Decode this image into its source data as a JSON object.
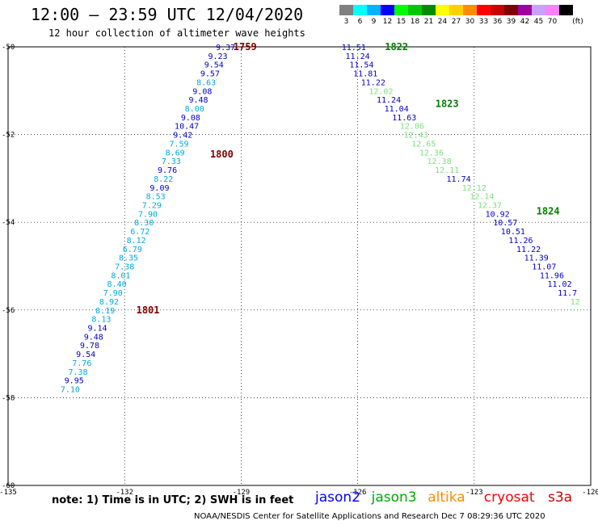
{
  "header": {
    "title": "12:00 – 23:59 UTC 12/04/2020",
    "subtitle": "12 hour collection of altimeter wave heights"
  },
  "colorbar": {
    "unit": "(ft)",
    "steps": [
      {
        "label": "3",
        "color": "#808080"
      },
      {
        "label": "6",
        "color": "#00ffff"
      },
      {
        "label": "9",
        "color": "#00b4ff"
      },
      {
        "label": "12",
        "color": "#0000ff"
      },
      {
        "label": "15",
        "color": "#00ff00"
      },
      {
        "label": "18",
        "color": "#00c800"
      },
      {
        "label": "21",
        "color": "#008c00"
      },
      {
        "label": "24",
        "color": "#ffff00"
      },
      {
        "label": "27",
        "color": "#ffd000"
      },
      {
        "label": "30",
        "color": "#ff8c00"
      },
      {
        "label": "33",
        "color": "#ff0000"
      },
      {
        "label": "36",
        "color": "#c80000"
      },
      {
        "label": "39",
        "color": "#800000"
      },
      {
        "label": "42",
        "color": "#a000a0"
      },
      {
        "label": "45",
        "color": "#c8a0ff"
      },
      {
        "label": "70",
        "color": "#ff80ff"
      },
      {
        "label": "",
        "color": "#000000"
      }
    ]
  },
  "axes": {
    "lon_ticks": [
      "-135",
      "-132",
      "-129",
      "-126",
      "-123",
      "-120"
    ],
    "lat_ticks": [
      "-50",
      "-52",
      "-54",
      "-56",
      "-58",
      "-60"
    ],
    "lon_range": [
      -135,
      -120
    ],
    "lat_range": [
      -50,
      -60
    ]
  },
  "tracks": [
    {
      "satellite": "jason2",
      "points": [
        {
          "lon": -129.4,
          "lat": -50.0,
          "v": "9.37",
          "color": "#0000cc"
        },
        {
          "lon": -129.6,
          "lat": -50.2,
          "v": "9.23",
          "color": "#0000cc"
        },
        {
          "lon": -129.7,
          "lat": -50.4,
          "v": "9.54",
          "color": "#0000cc"
        },
        {
          "lon": -129.8,
          "lat": -50.6,
          "v": "9.57",
          "color": "#0000cc"
        },
        {
          "lon": -129.9,
          "lat": -50.8,
          "v": "8.63",
          "color": "#00aadd"
        },
        {
          "lon": -130.0,
          "lat": -51.0,
          "v": "9.08",
          "color": "#0000cc"
        },
        {
          "lon": -130.1,
          "lat": -51.2,
          "v": "9.48",
          "color": "#0000cc"
        },
        {
          "lon": -130.2,
          "lat": -51.4,
          "v": "8.00",
          "color": "#00aadd"
        },
        {
          "lon": -130.3,
          "lat": -51.6,
          "v": "9.08",
          "color": "#0000cc"
        },
        {
          "lon": -130.4,
          "lat": -51.8,
          "v": "10.47",
          "color": "#0000cc"
        },
        {
          "lon": -130.5,
          "lat": -52.0,
          "v": "9.42",
          "color": "#0000cc"
        },
        {
          "lon": -130.6,
          "lat": -52.2,
          "v": "7.59",
          "color": "#00aadd"
        },
        {
          "lon": -130.7,
          "lat": -52.4,
          "v": "8.69",
          "color": "#00aadd"
        },
        {
          "lon": -130.8,
          "lat": -52.6,
          "v": "7.33",
          "color": "#00aadd"
        },
        {
          "lon": -130.9,
          "lat": -52.8,
          "v": "9.76",
          "color": "#0000cc"
        },
        {
          "lon": -131.0,
          "lat": -53.0,
          "v": "8.22",
          "color": "#00aadd"
        },
        {
          "lon": -131.1,
          "lat": -53.2,
          "v": "9.09",
          "color": "#0000cc"
        },
        {
          "lon": -131.2,
          "lat": -53.4,
          "v": "8.53",
          "color": "#00aadd"
        },
        {
          "lon": -131.3,
          "lat": -53.6,
          "v": "7.29",
          "color": "#00aadd"
        },
        {
          "lon": -131.4,
          "lat": -53.8,
          "v": "7.90",
          "color": "#00aadd"
        },
        {
          "lon": -131.5,
          "lat": -54.0,
          "v": "8.30",
          "color": "#00aadd"
        },
        {
          "lon": -131.6,
          "lat": -54.2,
          "v": "6.72",
          "color": "#00aadd"
        },
        {
          "lon": -131.7,
          "lat": -54.4,
          "v": "8.12",
          "color": "#00aadd"
        },
        {
          "lon": -131.8,
          "lat": -54.6,
          "v": "6.79",
          "color": "#00aadd"
        },
        {
          "lon": -131.9,
          "lat": -54.8,
          "v": "8.35",
          "color": "#00aadd"
        },
        {
          "lon": -132.0,
          "lat": -55.0,
          "v": "7.38",
          "color": "#00aadd"
        },
        {
          "lon": -132.1,
          "lat": -55.2,
          "v": "8.01",
          "color": "#00aadd"
        },
        {
          "lon": -132.2,
          "lat": -55.4,
          "v": "8.40",
          "color": "#00aadd"
        },
        {
          "lon": -132.3,
          "lat": -55.6,
          "v": "7.90",
          "color": "#00aadd"
        },
        {
          "lon": -132.4,
          "lat": -55.8,
          "v": "8.92",
          "color": "#00aadd"
        },
        {
          "lon": -132.5,
          "lat": -56.0,
          "v": "8.19",
          "color": "#00aadd"
        },
        {
          "lon": -132.6,
          "lat": -56.2,
          "v": "8.13",
          "color": "#00aadd"
        },
        {
          "lon": -132.7,
          "lat": -56.4,
          "v": "9.14",
          "color": "#0000cc"
        },
        {
          "lon": -132.8,
          "lat": -56.6,
          "v": "9.48",
          "color": "#0000cc"
        },
        {
          "lon": -132.9,
          "lat": -56.8,
          "v": "9.78",
          "color": "#0000cc"
        },
        {
          "lon": -133.0,
          "lat": -57.0,
          "v": "9.54",
          "color": "#0000cc"
        },
        {
          "lon": -133.1,
          "lat": -57.2,
          "v": "7.76",
          "color": "#00aadd"
        },
        {
          "lon": -133.2,
          "lat": -57.4,
          "v": "7.38",
          "color": "#00aadd"
        },
        {
          "lon": -133.3,
          "lat": -57.6,
          "v": "9.95",
          "color": "#0000cc"
        },
        {
          "lon": -133.4,
          "lat": -57.8,
          "v": "7.10",
          "color": "#00aadd"
        }
      ]
    },
    {
      "satellite": "jason3",
      "points": [
        {
          "lon": -126.1,
          "lat": -50.0,
          "v": "11.51",
          "color": "#0000cc"
        },
        {
          "lon": -126.0,
          "lat": -50.2,
          "v": "11.24",
          "color": "#0000cc"
        },
        {
          "lon": -125.9,
          "lat": -50.4,
          "v": "11.54",
          "color": "#0000cc"
        },
        {
          "lon": -125.8,
          "lat": -50.6,
          "v": "11.81",
          "color": "#0000cc"
        },
        {
          "lon": -125.6,
          "lat": -50.8,
          "v": "11.22",
          "color": "#0000cc"
        },
        {
          "lon": -125.4,
          "lat": -51.0,
          "v": "12.02",
          "color": "#7cdf7c"
        },
        {
          "lon": -125.2,
          "lat": -51.2,
          "v": "11.24",
          "color": "#0000cc"
        },
        {
          "lon": -125.0,
          "lat": -51.4,
          "v": "11.04",
          "color": "#0000cc"
        },
        {
          "lon": -124.8,
          "lat": -51.6,
          "v": "11.63",
          "color": "#0000cc"
        },
        {
          "lon": -124.6,
          "lat": -51.8,
          "v": "12.06",
          "color": "#7cdf7c"
        },
        {
          "lon": -124.5,
          "lat": -52.0,
          "v": "12.43",
          "color": "#7cdf7c"
        },
        {
          "lon": -124.3,
          "lat": -52.2,
          "v": "12.65",
          "color": "#7cdf7c"
        },
        {
          "lon": -124.1,
          "lat": -52.4,
          "v": "12.36",
          "color": "#7cdf7c"
        },
        {
          "lon": -123.9,
          "lat": -52.6,
          "v": "12.38",
          "color": "#7cdf7c"
        },
        {
          "lon": -123.7,
          "lat": -52.8,
          "v": "12.11",
          "color": "#7cdf7c"
        },
        {
          "lon": -123.4,
          "lat": -53.0,
          "v": "11.74",
          "color": "#0000cc"
        },
        {
          "lon": -123.0,
          "lat": -53.2,
          "v": "12.12",
          "color": "#7cdf7c"
        },
        {
          "lon": -122.8,
          "lat": -53.4,
          "v": "12.14",
          "color": "#7cdf7c"
        },
        {
          "lon": -122.6,
          "lat": -53.6,
          "v": "12.37",
          "color": "#7cdf7c"
        },
        {
          "lon": -122.4,
          "lat": -53.8,
          "v": "10.92",
          "color": "#0000cc"
        },
        {
          "lon": -122.2,
          "lat": -54.0,
          "v": "10.57",
          "color": "#0000cc"
        },
        {
          "lon": -122.0,
          "lat": -54.2,
          "v": "10.51",
          "color": "#0000cc"
        },
        {
          "lon": -121.8,
          "lat": -54.4,
          "v": "11.26",
          "color": "#0000cc"
        },
        {
          "lon": -121.6,
          "lat": -54.6,
          "v": "11.22",
          "color": "#0000cc"
        },
        {
          "lon": -121.4,
          "lat": -54.8,
          "v": "11.39",
          "color": "#0000cc"
        },
        {
          "lon": -121.2,
          "lat": -55.0,
          "v": "11.07",
          "color": "#0000cc"
        },
        {
          "lon": -121.0,
          "lat": -55.2,
          "v": "11.96",
          "color": "#0000cc"
        },
        {
          "lon": -120.8,
          "lat": -55.4,
          "v": "11.02",
          "color": "#0000cc"
        },
        {
          "lon": -120.6,
          "lat": -55.6,
          "v": "11.7",
          "color": "#0000cc"
        },
        {
          "lon": -120.4,
          "lat": -55.8,
          "v": "12",
          "color": "#7cdf7c"
        }
      ]
    }
  ],
  "time_labels": [
    {
      "text": "1759",
      "lon": -129.2,
      "lat": -50.0,
      "color": "#800000"
    },
    {
      "text": "1800",
      "lon": -129.8,
      "lat": -52.45,
      "color": "#800000"
    },
    {
      "text": "1801",
      "lon": -131.7,
      "lat": -56.0,
      "color": "#800000"
    },
    {
      "text": "1822",
      "lon": -125.3,
      "lat": -50.0,
      "color": "#008000"
    },
    {
      "text": "1823",
      "lon": -124.0,
      "lat": -51.3,
      "color": "#008000"
    },
    {
      "text": "1824",
      "lon": -121.4,
      "lat": -53.75,
      "color": "#008000"
    }
  ],
  "footer": {
    "note": "note:  1) Time is in UTC;  2) SWH is in feet",
    "satellites": [
      {
        "name": "jason2",
        "color": "#0000ff"
      },
      {
        "name": "jason3",
        "color": "#00aa00"
      },
      {
        "name": "altika",
        "color": "#ff8c00"
      },
      {
        "name": "cryosat",
        "color": "#ff0000"
      },
      {
        "name": "s3a",
        "color": "#cc0000"
      }
    ],
    "credit": "NOAA/NESDIS Center for Satellite Applications and Research    Dec  7 08:29:36 UTC 2020"
  }
}
